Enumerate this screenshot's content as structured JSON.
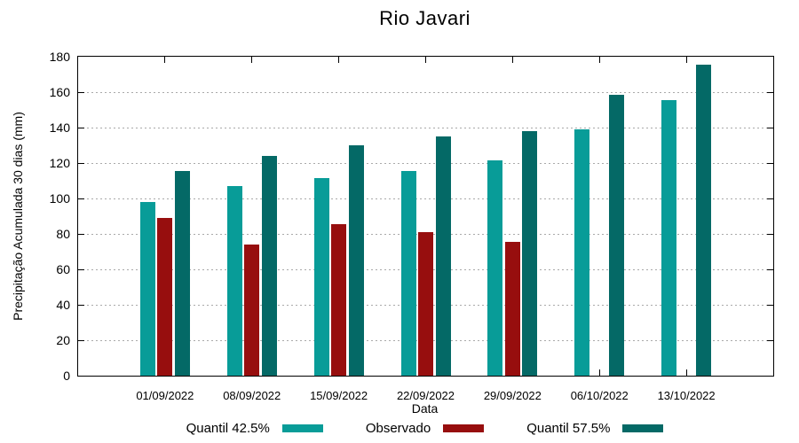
{
  "title": "Rio Javari",
  "chart_data": {
    "type": "bar",
    "title": "Rio Javari",
    "xlabel": "Data",
    "ylabel": "Precipitação Acumulada 30 dias (mm)",
    "ylim": [
      0,
      180
    ],
    "ytick_step": 20,
    "grid": "horizontal-dotted",
    "grid_color": "#a9a9a9",
    "legend_position": "bottom-center",
    "categories": [
      "01/09/2022",
      "08/09/2022",
      "15/09/2022",
      "22/09/2022",
      "29/09/2022",
      "06/10/2022",
      "13/10/2022"
    ],
    "series": [
      {
        "name": "Quantil 42.5%",
        "color": "#089c98",
        "values": [
          98,
          107,
          111.5,
          115.5,
          121.5,
          139,
          155.5
        ]
      },
      {
        "name": "Observado",
        "color": "#970e0e",
        "values": [
          89,
          74,
          85.5,
          81,
          75.5,
          null,
          null
        ]
      },
      {
        "name": "Quantil 57.5%",
        "color": "#046966",
        "values": [
          115.5,
          124,
          130,
          135,
          138,
          158.5,
          175.5
        ]
      }
    ]
  }
}
